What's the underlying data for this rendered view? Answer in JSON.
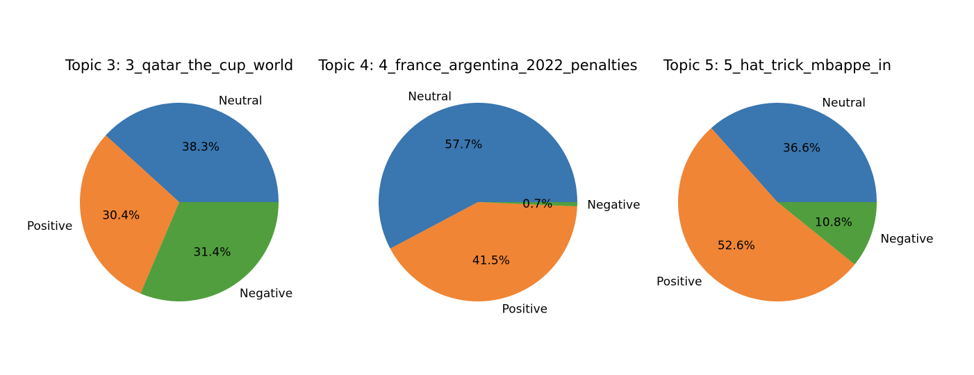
{
  "chart_data": [
    {
      "type": "pie",
      "title": "Topic 3: 3_qatar_the_cup_world",
      "slices": [
        {
          "label": "Neutral",
          "value": 38.3,
          "pct_label": "38.3%",
          "color": "#3a76af"
        },
        {
          "label": "Positive",
          "value": 30.4,
          "pct_label": "30.4%",
          "color": "#ef8535"
        },
        {
          "label": "Negative",
          "value": 31.4,
          "pct_label": "31.4%",
          "color": "#519e3e"
        }
      ]
    },
    {
      "type": "pie",
      "title": "Topic 4: 4_france_argentina_2022_penalties",
      "slices": [
        {
          "label": "Neutral",
          "value": 57.7,
          "pct_label": "57.7%",
          "color": "#3a76af"
        },
        {
          "label": "Positive",
          "value": 41.5,
          "pct_label": "41.5%",
          "color": "#ef8535"
        },
        {
          "label": "Negative",
          "value": 0.7,
          "pct_label": "0.7%",
          "color": "#519e3e"
        }
      ]
    },
    {
      "type": "pie",
      "title": "Topic 5: 5_hat_trick_mbappe_in",
      "slices": [
        {
          "label": "Neutral",
          "value": 36.6,
          "pct_label": "36.6%",
          "color": "#3a76af"
        },
        {
          "label": "Positive",
          "value": 52.6,
          "pct_label": "52.6%",
          "color": "#ef8535"
        },
        {
          "label": "Negative",
          "value": 10.8,
          "pct_label": "10.8%",
          "color": "#519e3e"
        }
      ]
    }
  ]
}
